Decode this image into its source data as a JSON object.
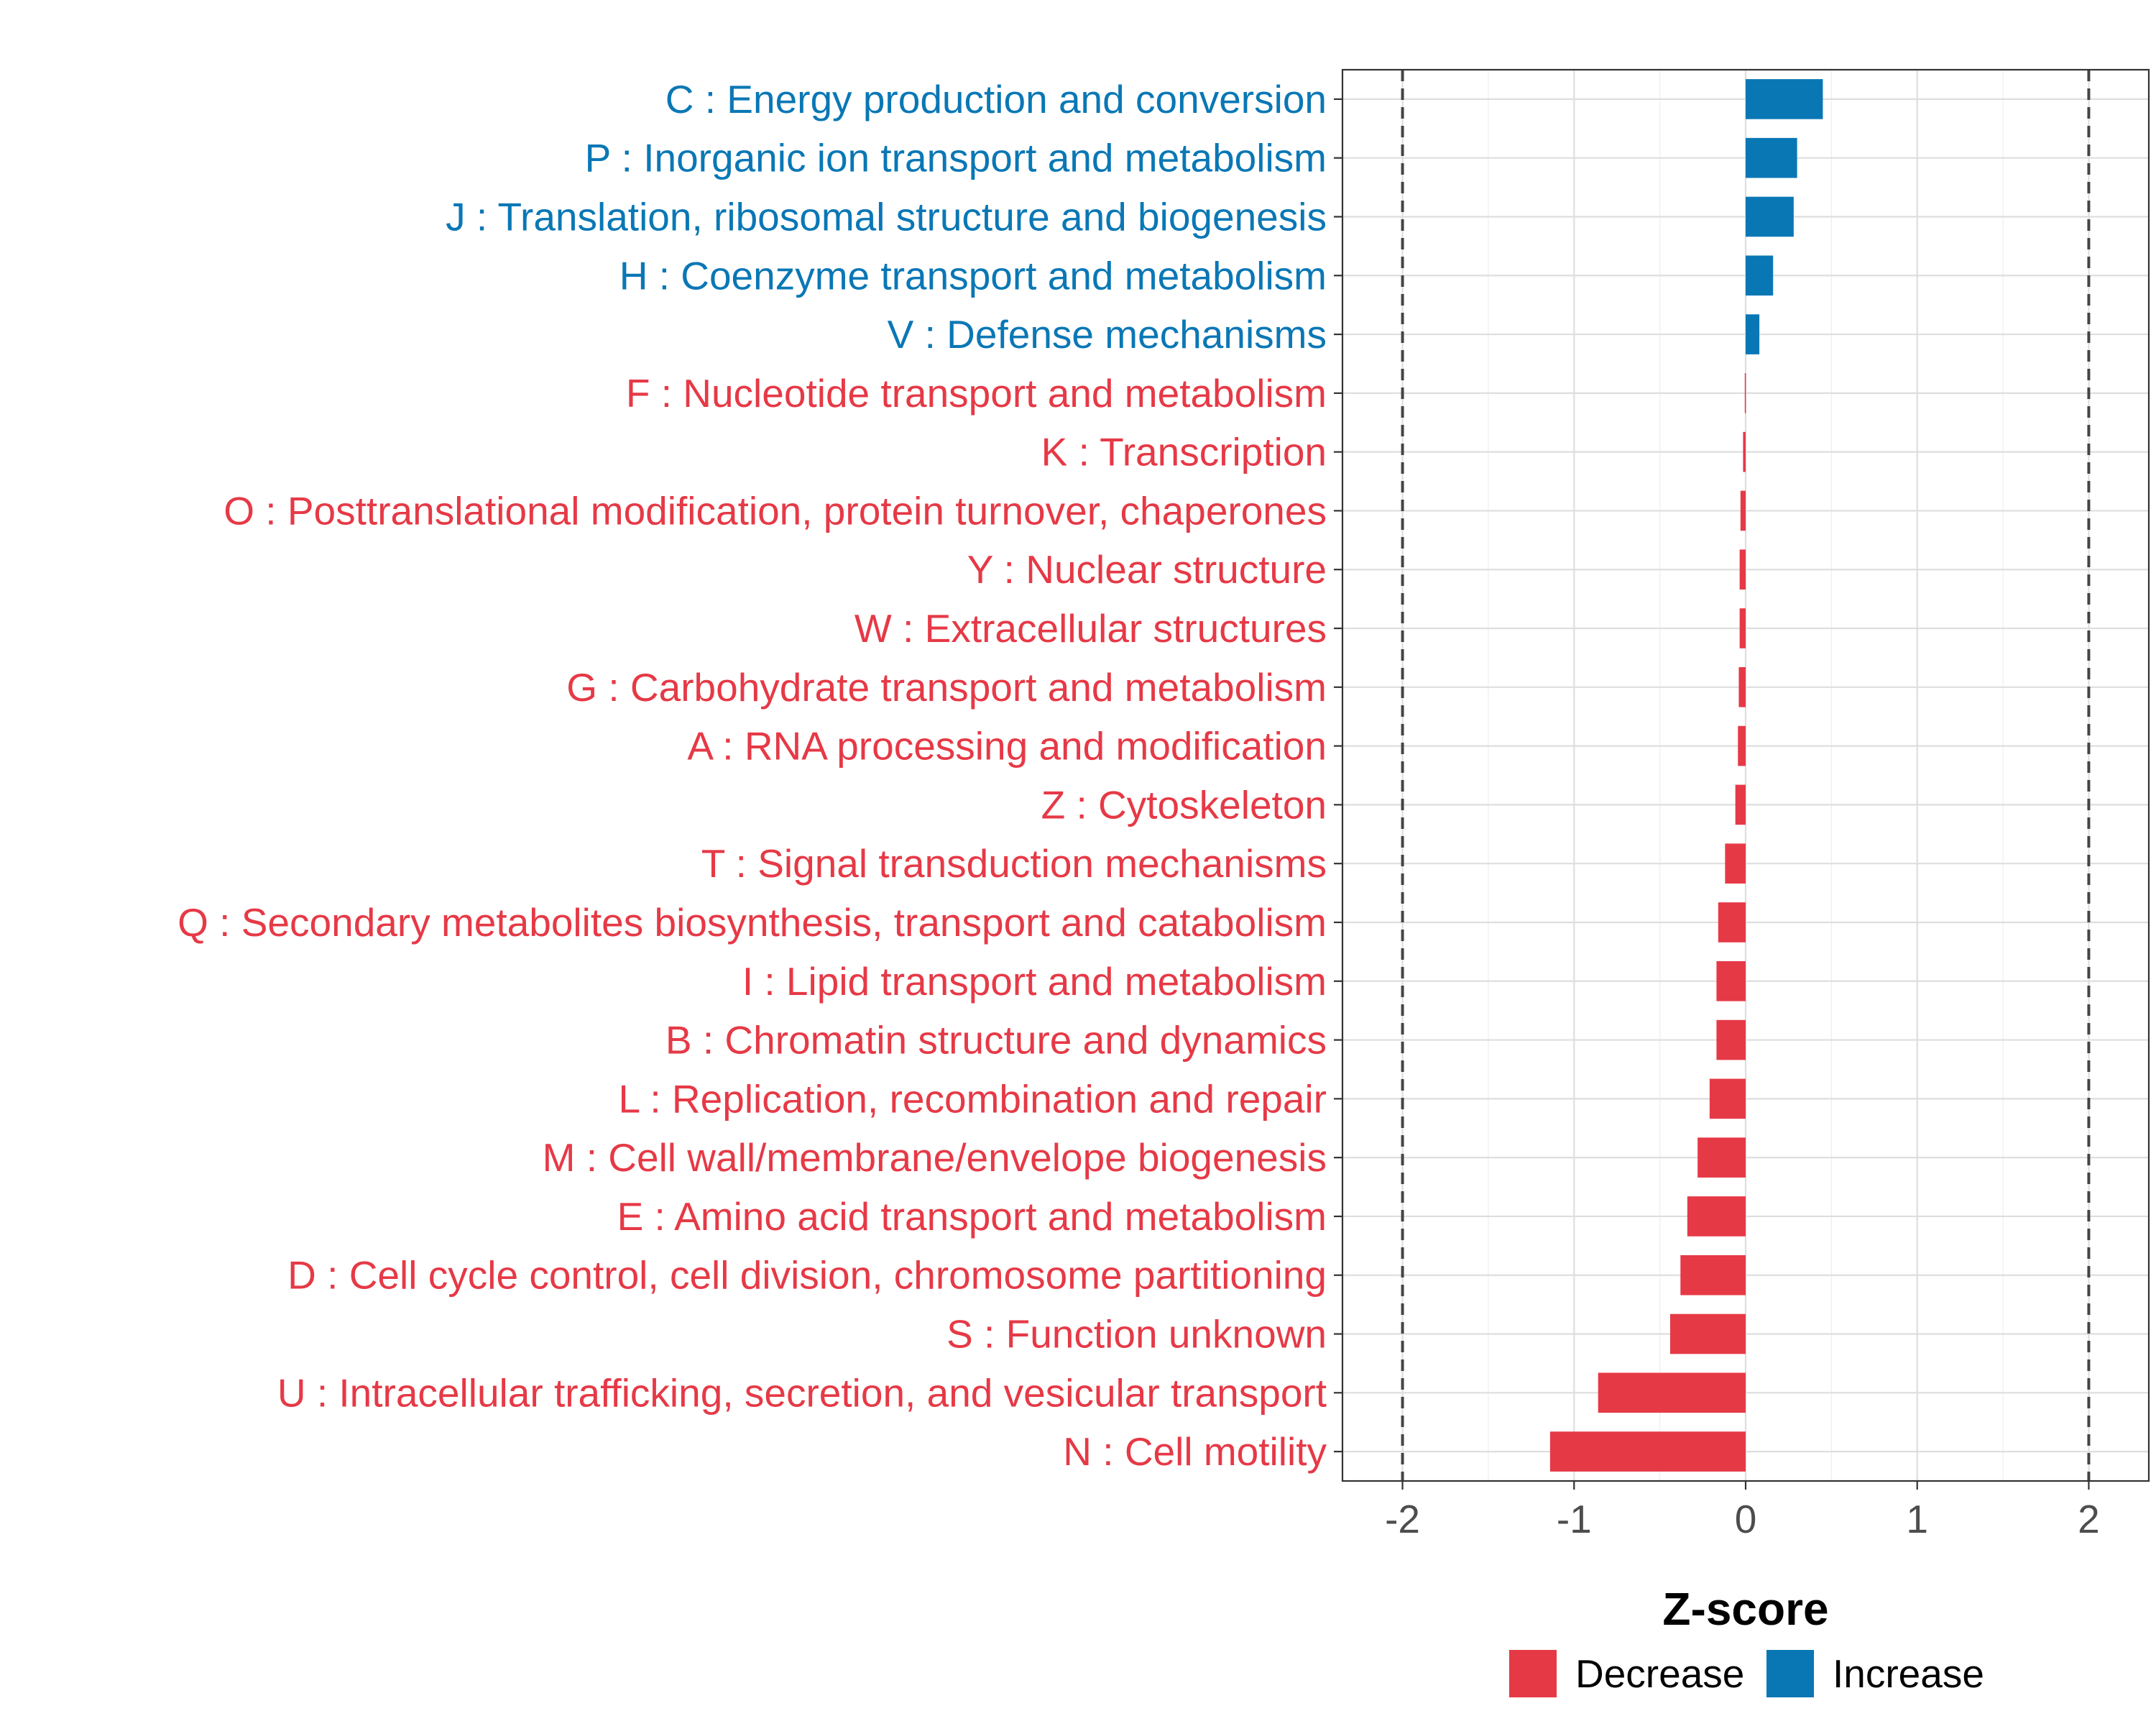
{
  "chart_data": {
    "type": "bar",
    "orientation": "horizontal",
    "title": "",
    "xlabel": "Z-score",
    "ylabel": "",
    "xlim": [
      -2.35,
      2.35
    ],
    "x_ticks": [
      -2,
      -1,
      0,
      1,
      2
    ],
    "x_tick_labels": [
      "-2",
      "-1",
      "0",
      "1",
      "2"
    ],
    "reference_lines": [
      -2,
      2
    ],
    "grid": true,
    "legend": {
      "position": "bottom",
      "items": [
        {
          "label": "Decrease",
          "color": "#E63946"
        },
        {
          "label": "Increase",
          "color": "#0A77B5"
        }
      ]
    },
    "categories": [
      "C : Energy production and conversion",
      "P : Inorganic ion transport and metabolism",
      "J : Translation, ribosomal structure and biogenesis",
      "H : Coenzyme transport and metabolism",
      "V : Defense mechanisms",
      "F : Nucleotide transport and metabolism",
      "K : Transcription",
      "O : Posttranslational modification, protein turnover, chaperones",
      "Y : Nuclear structure",
      "W : Extracellular structures",
      "G : Carbohydrate transport and metabolism",
      "A : RNA processing and modification",
      "Z : Cytoskeleton",
      "T : Signal transduction mechanisms",
      "Q : Secondary metabolites biosynthesis, transport and catabolism",
      "I : Lipid transport and metabolism",
      "B : Chromatin structure and dynamics",
      "L : Replication, recombination and repair",
      "M : Cell wall/membrane/envelope biogenesis",
      "E : Amino acid transport and metabolism",
      "D : Cell cycle control, cell division, chromosome partitioning",
      "S : Function unknown",
      "U : Intracellular trafficking, secretion, and vesicular transport",
      "N : Cell motility"
    ],
    "values": [
      0.45,
      0.3,
      0.28,
      0.16,
      0.08,
      -0.005,
      -0.015,
      -0.03,
      -0.035,
      -0.035,
      -0.04,
      -0.045,
      -0.06,
      -0.12,
      -0.16,
      -0.17,
      -0.17,
      -0.21,
      -0.28,
      -0.34,
      -0.38,
      -0.44,
      -0.86,
      -1.14
    ],
    "directions": [
      "Increase",
      "Increase",
      "Increase",
      "Increase",
      "Increase",
      "Decrease",
      "Decrease",
      "Decrease",
      "Decrease",
      "Decrease",
      "Decrease",
      "Decrease",
      "Decrease",
      "Decrease",
      "Decrease",
      "Decrease",
      "Decrease",
      "Decrease",
      "Decrease",
      "Decrease",
      "Decrease",
      "Decrease",
      "Decrease",
      "Decrease"
    ]
  }
}
